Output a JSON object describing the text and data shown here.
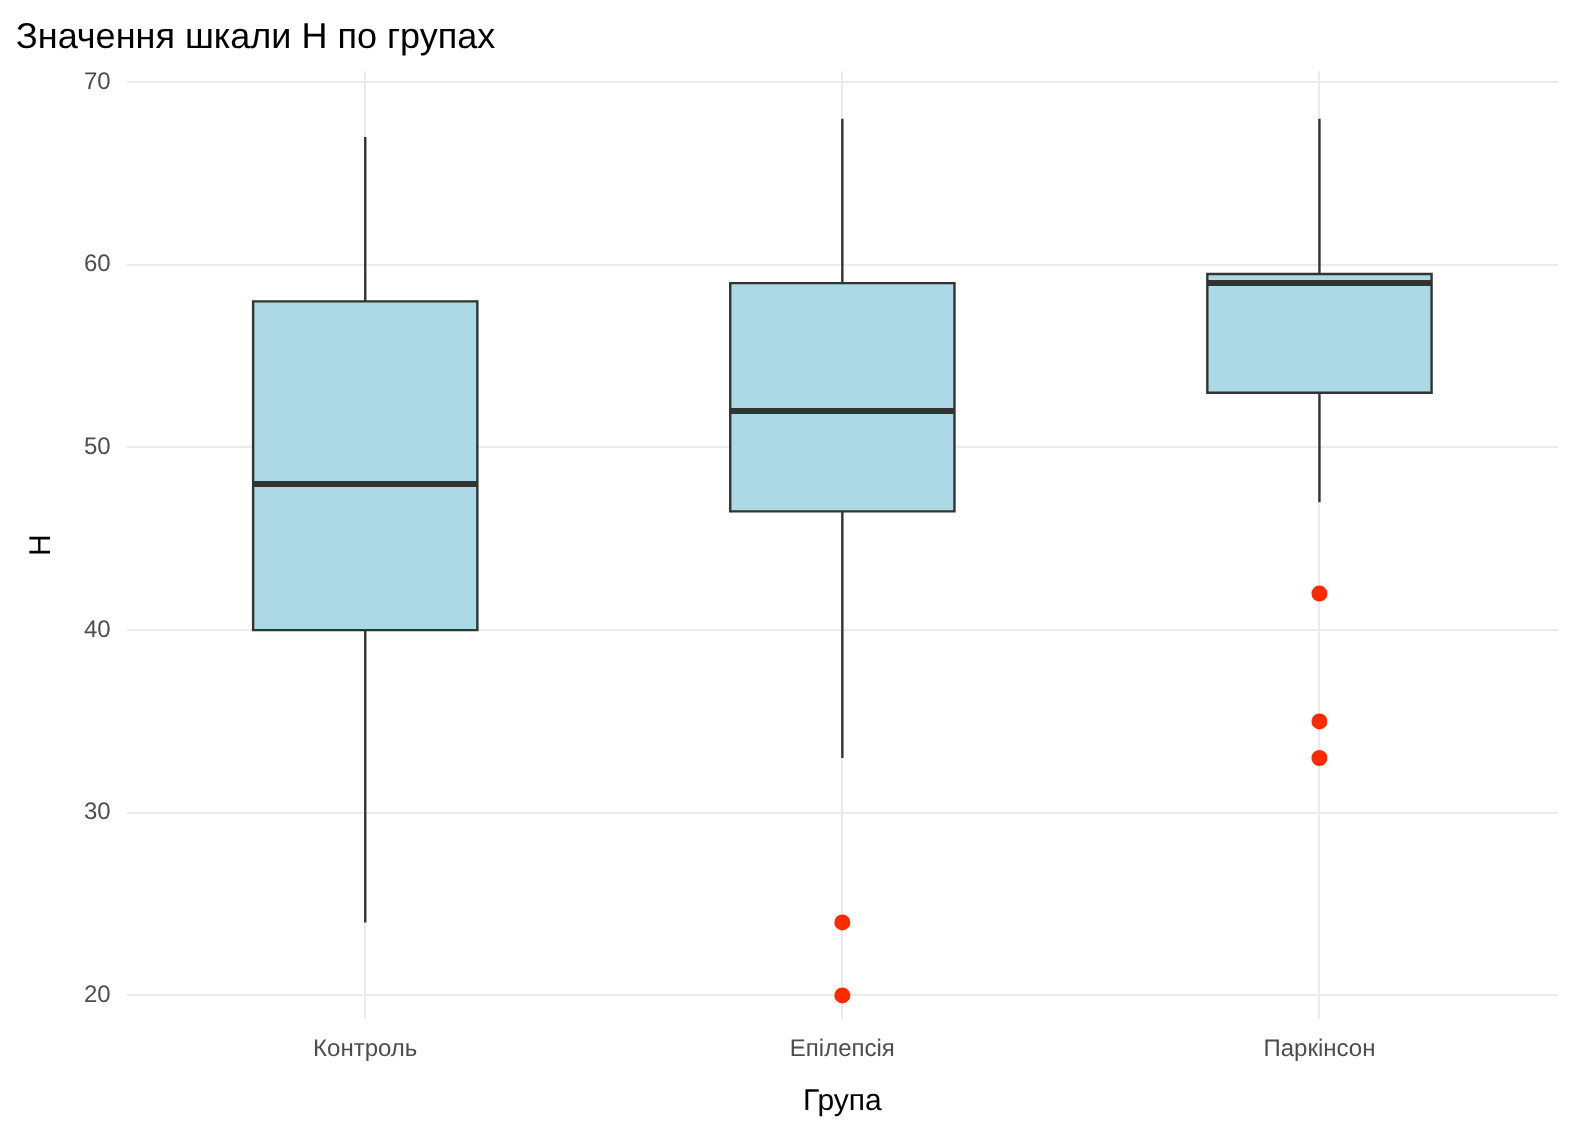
{
  "chart_data": {
    "type": "box",
    "title": "Значення шкали Н по групах",
    "xlabel": "Група",
    "ylabel": "Н",
    "categories": [
      "Контроль",
      "Епілепсія",
      "Паркінсон"
    ],
    "series": [
      {
        "color": "#add8e6",
        "boxes": [
          {
            "low": 24,
            "q1": 40,
            "median": 48,
            "q3": 58,
            "high": 67
          },
          {
            "low": 33,
            "q1": 46.5,
            "median": 52,
            "q3": 59,
            "high": 68,
            "outliers": [
              24,
              20
            ]
          },
          {
            "low": 47,
            "q1": 53,
            "median": 59,
            "q3": 59.5,
            "high": 68,
            "outliers": [
              42,
              35,
              33
            ]
          }
        ]
      }
    ],
    "ylim": [
      18.7,
      70.6
    ],
    "yticks": [
      20,
      30,
      40,
      50,
      60,
      70
    ],
    "grid": true,
    "legend": false
  }
}
